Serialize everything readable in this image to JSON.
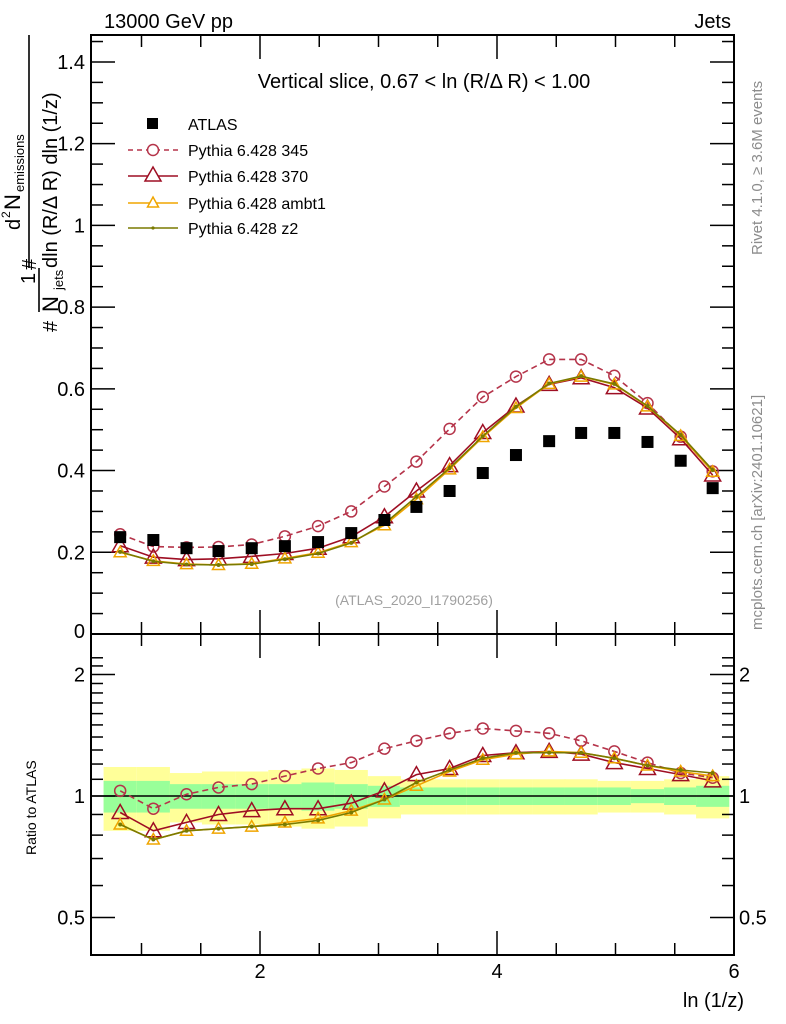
{
  "chart_data": {
    "type": "line",
    "header_left": "13000 GeV pp",
    "header_right": "Jets",
    "title": "Vertical slice, 0.67 < ln (R/Δ R) < 1.00",
    "watermark": "(ATLAS_2020_I1790256)",
    "side_label_top": "Rivet 4.1.0, ≥ 3.6M events",
    "side_label_bottom": "mcplots.cern.ch [arXiv:2401.10621]",
    "ylabel_parts": {
      "prefix": "#",
      "frac1_num": "1",
      "frac1_den": "N",
      "frac1_den_sub": "jets",
      "mid": "#",
      "frac2_num": "d",
      "frac2_num_sup": "2",
      "frac2_num_N": "N",
      "frac2_num_sub": "emissions",
      "frac2_den": "dln (R/Δ R) dln (1/z)"
    },
    "xlabel": "ln (1/z)",
    "ratio_ylabel": "Ratio to ATLAS",
    "xlim": [
      0.57,
      6.0
    ],
    "ylim": [
      0,
      1.46
    ],
    "ratio_ylim": [
      0.4,
      2.3
    ],
    "ratio_scale": "log",
    "x_ticks": [
      2,
      4,
      6
    ],
    "x_tick_labels": [
      "2",
      "4",
      "6"
    ],
    "y_ticks": [
      0,
      0.2,
      0.4,
      0.6,
      0.8,
      1.0,
      1.2,
      1.4
    ],
    "y_tick_labels": [
      "0",
      "0.2",
      "0.4",
      "0.6",
      "0.8",
      "1",
      "1.2",
      "1.4"
    ],
    "ratio_ticks": [
      0.5,
      1,
      2
    ],
    "ratio_tick_labels": [
      "0.5",
      "1",
      "2"
    ],
    "legend_position": "top-left",
    "x": [
      0.82,
      1.1,
      1.38,
      1.65,
      1.93,
      2.21,
      2.49,
      2.77,
      3.05,
      3.32,
      3.6,
      3.88,
      4.16,
      4.44,
      4.71,
      4.99,
      5.27,
      5.55,
      5.82
    ],
    "series": [
      {
        "name": "ATLAS",
        "color": "#000000",
        "marker": "square",
        "line": "none",
        "values": [
          0.237,
          0.23,
          0.21,
          0.203,
          0.21,
          0.215,
          0.225,
          0.247,
          0.279,
          0.311,
          0.35,
          0.394,
          0.438,
          0.472,
          0.492,
          0.492,
          0.47,
          0.424,
          0.357
        ],
        "band_inner": [
          0.09,
          0.09,
          0.07,
          0.07,
          0.07,
          0.07,
          0.08,
          0.07,
          0.06,
          0.05,
          0.05,
          0.05,
          0.05,
          0.05,
          0.05,
          0.05,
          0.04,
          0.05,
          0.06
        ],
        "band_outer": [
          0.18,
          0.18,
          0.14,
          0.15,
          0.15,
          0.16,
          0.17,
          0.16,
          0.12,
          0.1,
          0.1,
          0.1,
          0.1,
          0.1,
          0.1,
          0.09,
          0.09,
          0.1,
          0.12
        ]
      },
      {
        "name": "Pythia 6.428 345",
        "color": "#b5344a",
        "marker": "open-circle",
        "line": "dashed",
        "values": [
          0.244,
          0.214,
          0.212,
          0.213,
          0.219,
          0.239,
          0.264,
          0.3,
          0.361,
          0.422,
          0.502,
          0.58,
          0.63,
          0.672,
          0.672,
          0.632,
          0.565,
          0.483,
          0.398
        ],
        "ratio": [
          1.03,
          0.93,
          1.01,
          1.05,
          1.07,
          1.12,
          1.17,
          1.21,
          1.31,
          1.37,
          1.43,
          1.47,
          1.45,
          1.43,
          1.37,
          1.29,
          1.21,
          1.14,
          1.11
        ]
      },
      {
        "name": "Pythia 6.428 370",
        "color": "#9e0e23",
        "marker": "open-triangle",
        "line": "solid",
        "values": [
          0.216,
          0.188,
          0.182,
          0.184,
          0.19,
          0.197,
          0.21,
          0.238,
          0.287,
          0.35,
          0.412,
          0.493,
          0.558,
          0.611,
          0.627,
          0.603,
          0.553,
          0.478,
          0.389
        ],
        "ratio": [
          0.91,
          0.82,
          0.86,
          0.9,
          0.92,
          0.93,
          0.93,
          0.96,
          1.03,
          1.13,
          1.17,
          1.26,
          1.28,
          1.29,
          1.27,
          1.21,
          1.17,
          1.13,
          1.09
        ]
      },
      {
        "name": "Pythia 6.428 ambt1",
        "color": "#f0a500",
        "marker": "open-triangle",
        "line": "solid",
        "values": [
          0.2,
          0.179,
          0.171,
          0.169,
          0.172,
          0.185,
          0.199,
          0.225,
          0.266,
          0.33,
          0.403,
          0.482,
          0.553,
          0.612,
          0.63,
          0.611,
          0.557,
          0.485,
          0.397
        ],
        "ratio": [
          0.85,
          0.78,
          0.82,
          0.83,
          0.84,
          0.86,
          0.88,
          0.92,
          0.98,
          1.06,
          1.15,
          1.23,
          1.27,
          1.29,
          1.28,
          1.24,
          1.19,
          1.15,
          1.12
        ]
      },
      {
        "name": "Pythia 6.428 z2",
        "color": "#7a7a00",
        "marker": "small-dot",
        "line": "solid",
        "values": [
          0.201,
          0.178,
          0.17,
          0.169,
          0.171,
          0.183,
          0.197,
          0.223,
          0.27,
          0.336,
          0.406,
          0.484,
          0.556,
          0.613,
          0.631,
          0.612,
          0.558,
          0.487,
          0.401
        ],
        "ratio": [
          0.85,
          0.78,
          0.82,
          0.83,
          0.84,
          0.85,
          0.87,
          0.91,
          0.98,
          1.08,
          1.16,
          1.24,
          1.28,
          1.28,
          1.28,
          1.24,
          1.19,
          1.16,
          1.14
        ]
      }
    ]
  }
}
